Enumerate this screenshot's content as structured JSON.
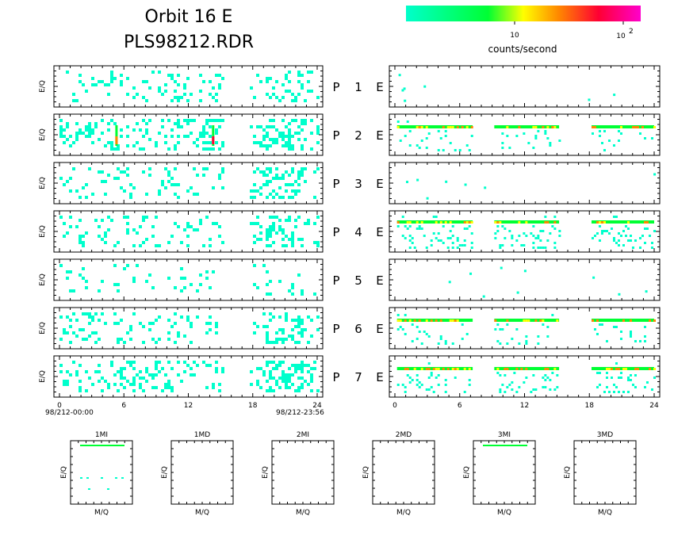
{
  "header": {
    "title_line1": "Orbit 16 E",
    "title_line2": "PLS98212.RDR"
  },
  "colorbar": {
    "label": "counts/second",
    "tick_10": "10",
    "tick_100_base": "10",
    "tick_100_exp": "2",
    "colors": [
      "#00ffcc",
      "#00ff33",
      "#ffff00",
      "#ff8800",
      "#ff0033",
      "#ff00cc"
    ]
  },
  "time_axis": {
    "ticks": [
      "0",
      "6",
      "12",
      "18",
      "24"
    ],
    "start_label": "98/212-00:00",
    "end_label": "98/212-23:56"
  },
  "row_axis_label": "E/Q",
  "channel_letter": "E",
  "chart_data": {
    "type": "heatmap",
    "description_source": "spectrogram panels, 7 detector rows x 2 columns",
    "x_range_hours": [
      0,
      24
    ],
    "data_gap_hours": [
      15.3,
      17.6
    ],
    "rows": [
      {
        "id": "P",
        "num": "1",
        "left_intensity": "low",
        "right_intensity": "sparse"
      },
      {
        "id": "P",
        "num": "2",
        "left_intensity": "medium",
        "right_intensity": "band"
      },
      {
        "id": "P",
        "num": "3",
        "left_intensity": "low",
        "right_intensity": "sparse"
      },
      {
        "id": "P",
        "num": "4",
        "left_intensity": "low",
        "right_intensity": "band"
      },
      {
        "id": "P",
        "num": "5",
        "left_intensity": "sparse",
        "right_intensity": "sparse"
      },
      {
        "id": "P",
        "num": "6",
        "left_intensity": "low",
        "right_intensity": "band"
      },
      {
        "id": "P",
        "num": "7",
        "left_intensity": "medium",
        "right_intensity": "band"
      }
    ],
    "color_scale": {
      "label": "counts/second",
      "ticks": [
        "10",
        "10^2"
      ],
      "scale": "log"
    }
  },
  "small_panels": {
    "xlabel": "M/Q",
    "ylabel": "E/Q",
    "titles": [
      "1MI",
      "1MD",
      "2MI",
      "2MD",
      "3MI",
      "3MD"
    ]
  }
}
